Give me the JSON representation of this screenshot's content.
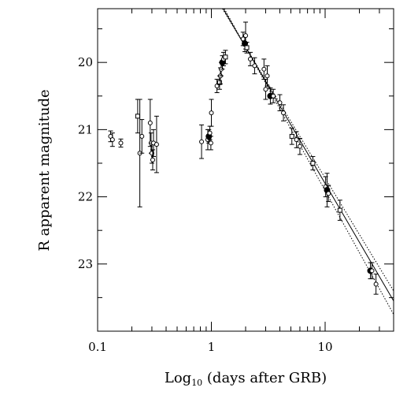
{
  "chart_data": {
    "type": "scatter",
    "xscale": "log",
    "xlim": [
      0.1,
      40
    ],
    "ylim": [
      24,
      19.2
    ],
    "y_inverted": true,
    "xlabel_prefix": "Log",
    "xlabel_sub": "10",
    "xlabel_suffix": " (days after GRB)",
    "ylabel": "R apparent magnitude",
    "x_ticks": [
      {
        "value": 0.1,
        "label": "0.1"
      },
      {
        "value": 1,
        "label": "1"
      },
      {
        "value": 10,
        "label": "10"
      }
    ],
    "y_ticks": [
      {
        "value": 20,
        "label": "20"
      },
      {
        "value": 21,
        "label": "21"
      },
      {
        "value": 22,
        "label": "22"
      },
      {
        "value": 23,
        "label": "23"
      }
    ],
    "y_minor_ticks": [
      19.5,
      20.5,
      21.5,
      22.5,
      23.5
    ],
    "points": [
      {
        "x": 0.13,
        "y": 21.1,
        "err": 0.08,
        "marker": "circle"
      },
      {
        "x": 0.135,
        "y": 21.15,
        "err": 0.1,
        "marker": "circle"
      },
      {
        "x": 0.16,
        "y": 21.2,
        "err": 0.06,
        "marker": "circle"
      },
      {
        "x": 0.225,
        "y": 20.8,
        "err": 0.25,
        "marker": "square"
      },
      {
        "x": 0.235,
        "y": 21.35,
        "err": 0.8,
        "marker": "circle"
      },
      {
        "x": 0.245,
        "y": 21.1,
        "err": 0.25,
        "marker": "circle"
      },
      {
        "x": 0.29,
        "y": 20.9,
        "err": 0.35,
        "marker": "circle"
      },
      {
        "x": 0.295,
        "y": 21.2,
        "err": 0.15,
        "marker": "circle"
      },
      {
        "x": 0.3,
        "y": 21.35,
        "err": 0.15,
        "marker": "circle"
      },
      {
        "x": 0.305,
        "y": 21.45,
        "err": 0.15,
        "marker": "circle"
      },
      {
        "x": 0.31,
        "y": 21.2,
        "err": 0.2,
        "marker": "circle"
      },
      {
        "x": 0.33,
        "y": 21.22,
        "err": 0.42,
        "marker": "circle"
      },
      {
        "x": 0.82,
        "y": 21.18,
        "err": 0.25,
        "marker": "circle"
      },
      {
        "x": 0.93,
        "y": 21.15,
        "err": 0.15,
        "marker": "circle"
      },
      {
        "x": 0.95,
        "y": 21.1,
        "err": 0.1,
        "marker": "filled"
      },
      {
        "x": 0.97,
        "y": 21.05,
        "err": 0.1,
        "marker": "circle"
      },
      {
        "x": 0.99,
        "y": 21.2,
        "err": 0.1,
        "marker": "circle"
      },
      {
        "x": 1.0,
        "y": 20.75,
        "err": 0.2,
        "marker": "circle"
      },
      {
        "x": 1.12,
        "y": 20.35,
        "err": 0.1,
        "marker": "circle"
      },
      {
        "x": 1.18,
        "y": 20.3,
        "err": 0.1,
        "marker": "square"
      },
      {
        "x": 1.2,
        "y": 20.2,
        "err": 0.12,
        "marker": "circle"
      },
      {
        "x": 1.22,
        "y": 20.1,
        "err": 0.1,
        "marker": "circle"
      },
      {
        "x": 1.25,
        "y": 20.0,
        "err": 0.1,
        "marker": "filled"
      },
      {
        "x": 1.28,
        "y": 19.95,
        "err": 0.1,
        "marker": "circle"
      },
      {
        "x": 1.33,
        "y": 19.92,
        "err": 0.1,
        "marker": "square"
      },
      {
        "x": 1.9,
        "y": 19.65,
        "err": 0.1,
        "marker": "circle"
      },
      {
        "x": 1.97,
        "y": 19.72,
        "err": 0.12,
        "marker": "filled"
      },
      {
        "x": 2.0,
        "y": 19.6,
        "err": 0.2,
        "marker": "circle"
      },
      {
        "x": 2.05,
        "y": 19.78,
        "err": 0.08,
        "marker": "square"
      },
      {
        "x": 2.2,
        "y": 19.95,
        "err": 0.1,
        "marker": "circle"
      },
      {
        "x": 2.4,
        "y": 20.05,
        "err": 0.12,
        "marker": "circle"
      },
      {
        "x": 2.9,
        "y": 20.1,
        "err": 0.15,
        "marker": "circle"
      },
      {
        "x": 3.1,
        "y": 20.2,
        "err": 0.15,
        "marker": "circle"
      },
      {
        "x": 3.0,
        "y": 20.4,
        "err": 0.15,
        "marker": "circle"
      },
      {
        "x": 3.3,
        "y": 20.5,
        "err": 0.12,
        "marker": "filled"
      },
      {
        "x": 3.5,
        "y": 20.5,
        "err": 0.1,
        "marker": "circle"
      },
      {
        "x": 4.0,
        "y": 20.6,
        "err": 0.12,
        "marker": "circle"
      },
      {
        "x": 4.3,
        "y": 20.75,
        "err": 0.12,
        "marker": "circle"
      },
      {
        "x": 5.1,
        "y": 21.1,
        "err": 0.12,
        "marker": "square"
      },
      {
        "x": 5.6,
        "y": 21.15,
        "err": 0.12,
        "marker": "circle"
      },
      {
        "x": 6.0,
        "y": 21.25,
        "err": 0.12,
        "marker": "circle"
      },
      {
        "x": 7.8,
        "y": 21.5,
        "err": 0.1,
        "marker": "square"
      },
      {
        "x": 10.1,
        "y": 21.85,
        "err": 0.15,
        "marker": "circle"
      },
      {
        "x": 10.4,
        "y": 21.9,
        "err": 0.25,
        "marker": "filled"
      },
      {
        "x": 10.7,
        "y": 21.95,
        "err": 0.12,
        "marker": "circle"
      },
      {
        "x": 13.5,
        "y": 22.2,
        "err": 0.15,
        "marker": "square"
      },
      {
        "x": 25.0,
        "y": 23.1,
        "err": 0.12,
        "marker": "filled"
      },
      {
        "x": 25.8,
        "y": 23.1,
        "err": 0.12,
        "marker": "circle"
      },
      {
        "x": 28.0,
        "y": 23.3,
        "err": 0.15,
        "marker": "circle"
      }
    ],
    "fit_lines": [
      {
        "style": "solid",
        "points": [
          [
            1.27,
            19.2
          ],
          [
            40,
            23.55
          ]
        ]
      },
      {
        "style": "dotted",
        "points": [
          [
            1.25,
            19.2
          ],
          [
            40,
            23.4
          ]
        ]
      },
      {
        "style": "dotted",
        "points": [
          [
            1.3,
            19.2
          ],
          [
            40,
            23.75
          ]
        ]
      }
    ]
  }
}
